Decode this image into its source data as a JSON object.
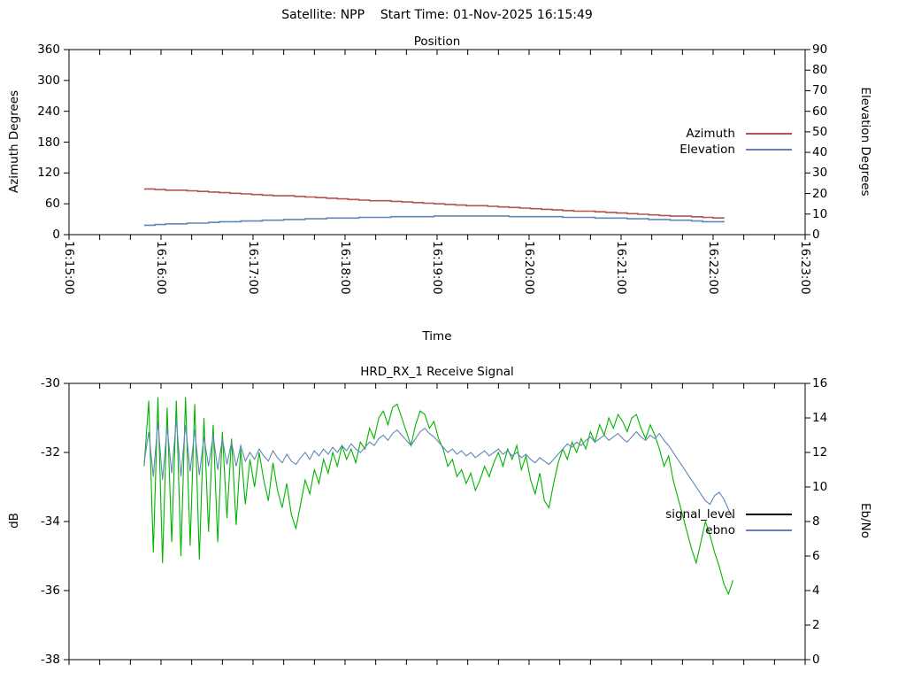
{
  "header": {
    "title": "Satellite: NPP    Start Time: 01-Nov-2025 16:15:49"
  },
  "colors": {
    "frame": "#000000",
    "background": "#ffffff",
    "azimuth_curve": "#b2544f",
    "elevation_curve": "#5f87b8",
    "signal_level_legend": "#000000",
    "signal_level_curve": "#00b400",
    "ebno_curve": "#5f87b8"
  },
  "chart_data": [
    {
      "type": "line",
      "title": "Position",
      "xlabel": "Time",
      "ylabel_left": "Azimuth Degrees",
      "ylabel_right": "Elevation Degrees",
      "x_tick_labels": [
        "16:15:00",
        "16:16:00",
        "16:17:00",
        "16:18:00",
        "16:19:00",
        "16:20:00",
        "16:21:00",
        "16:22:00",
        "16:23:00"
      ],
      "x_tick_seconds": [
        0,
        60,
        120,
        180,
        240,
        300,
        360,
        420,
        480
      ],
      "x_minor_tick_interval_s": 20,
      "x_range_s": [
        0,
        480
      ],
      "ylim_left": [
        0,
        360
      ],
      "yticks_left": [
        0,
        60,
        120,
        180,
        240,
        300,
        360
      ],
      "ylim_right": [
        0,
        90
      ],
      "yticks_right": [
        0,
        10,
        20,
        30,
        40,
        50,
        60,
        70,
        80,
        90
      ],
      "grid": false,
      "legend_position": "right-inside",
      "legend": [
        {
          "label": "Azimuth",
          "color_key": "azimuth_curve"
        },
        {
          "label": "Elevation",
          "color_key": "elevation_curve"
        }
      ],
      "series": [
        {
          "name": "Azimuth",
          "axis": "left",
          "color_key": "azimuth_curve",
          "t_start_s": 49,
          "t_step_s": 24,
          "quantize": 1.2,
          "values": [
            89,
            85.4,
            81.7,
            78,
            74.3,
            70.7,
            67,
            63.3,
            59.6,
            56,
            52.3,
            48.6,
            44.9,
            41.3,
            37.6,
            33.9,
            30.2
          ]
        },
        {
          "name": "Elevation",
          "axis": "right",
          "color_key": "elevation_curve",
          "t_start_s": 49,
          "t_step_s": 24,
          "quantize": 0.35,
          "values": [
            4.7,
            5.4,
            6.1,
            6.8,
            7.4,
            8.0,
            8.4,
            8.8,
            9.0,
            9.0,
            8.9,
            8.6,
            8.3,
            7.8,
            7.3,
            6.6,
            5.8
          ]
        }
      ]
    },
    {
      "type": "line",
      "title": "HRD_RX_1 Receive Signal",
      "xlabel": "",
      "ylabel_left": "dB",
      "ylabel_right": "Eb/No",
      "x_tick_labels": [],
      "x_tick_seconds": [
        0,
        60,
        120,
        180,
        240,
        300,
        360,
        420,
        480
      ],
      "x_minor_tick_interval_s": 20,
      "x_range_s": [
        0,
        480
      ],
      "ylim_left": [
        -38,
        -30
      ],
      "yticks_left": [
        -38,
        -36,
        -34,
        -32,
        -30
      ],
      "ylim_right": [
        0,
        16
      ],
      "yticks_right": [
        0,
        2,
        4,
        6,
        8,
        10,
        12,
        14,
        16
      ],
      "grid": false,
      "legend_position": "right-inside",
      "legend": [
        {
          "label": "signal_level",
          "color_key": "signal_level_legend"
        },
        {
          "label": "ebno",
          "color_key": "ebno_curve"
        }
      ],
      "series": [
        {
          "name": "signal_level",
          "axis": "left",
          "color_key": "signal_level_curve",
          "t_start_s": 49,
          "t_step_s": 3,
          "values": [
            -32.4,
            -30.5,
            -34.9,
            -30.4,
            -35.2,
            -30.7,
            -34.6,
            -30.5,
            -35.0,
            -30.4,
            -34.7,
            -30.6,
            -35.1,
            -31.0,
            -34.3,
            -31.2,
            -34.6,
            -31.4,
            -33.9,
            -31.6,
            -34.1,
            -31.9,
            -33.5,
            -32.2,
            -33.0,
            -32.0,
            -32.8,
            -33.4,
            -32.3,
            -33.1,
            -33.6,
            -32.9,
            -33.8,
            -34.2,
            -33.5,
            -32.8,
            -33.2,
            -32.5,
            -32.9,
            -32.2,
            -32.6,
            -32.0,
            -32.4,
            -31.8,
            -32.2,
            -31.9,
            -32.3,
            -31.7,
            -31.9,
            -31.3,
            -31.6,
            -31.0,
            -30.8,
            -31.2,
            -30.7,
            -30.6,
            -31.0,
            -31.4,
            -31.8,
            -31.2,
            -30.8,
            -30.9,
            -31.3,
            -31.1,
            -31.6,
            -31.9,
            -32.4,
            -32.2,
            -32.7,
            -32.5,
            -32.9,
            -32.6,
            -33.1,
            -32.8,
            -32.4,
            -32.7,
            -32.3,
            -32.0,
            -32.4,
            -31.9,
            -32.2,
            -31.8,
            -32.5,
            -32.1,
            -32.8,
            -33.2,
            -32.6,
            -33.4,
            -33.6,
            -32.9,
            -32.3,
            -31.9,
            -32.2,
            -31.7,
            -32.0,
            -31.6,
            -31.9,
            -31.4,
            -31.7,
            -31.2,
            -31.5,
            -31.0,
            -31.3,
            -30.9,
            -31.1,
            -31.4,
            -31.0,
            -30.9,
            -31.3,
            -31.6,
            -31.2,
            -31.5,
            -31.9,
            -32.4,
            -32.1,
            -32.8,
            -33.3,
            -33.8,
            -34.3,
            -34.8,
            -35.2,
            -34.6,
            -34.0,
            -34.4,
            -34.9,
            -35.3,
            -35.8,
            -36.1,
            -35.7
          ]
        },
        {
          "name": "ebno",
          "axis": "right",
          "color_key": "ebno_curve",
          "t_start_s": 49,
          "t_step_s": 3,
          "values": [
            11.4,
            13.2,
            10.6,
            13.8,
            10.4,
            13.5,
            10.8,
            13.9,
            10.6,
            13.6,
            10.9,
            13.3,
            10.7,
            12.9,
            11.2,
            13.0,
            11.0,
            12.8,
            11.3,
            12.6,
            11.2,
            12.4,
            11.5,
            12.0,
            11.6,
            12.2,
            11.8,
            11.5,
            12.1,
            11.7,
            11.4,
            11.9,
            11.5,
            11.3,
            11.7,
            12.0,
            11.6,
            12.1,
            11.8,
            12.2,
            11.9,
            12.3,
            12.0,
            12.4,
            12.1,
            12.5,
            12.2,
            12.0,
            12.3,
            12.6,
            12.4,
            12.8,
            13.0,
            12.7,
            13.1,
            13.3,
            13.0,
            12.7,
            12.4,
            12.8,
            13.2,
            13.4,
            13.1,
            12.9,
            12.6,
            12.3,
            12.0,
            12.2,
            11.9,
            12.1,
            11.8,
            12.0,
            11.7,
            11.9,
            12.1,
            11.8,
            12.0,
            12.2,
            11.9,
            12.1,
            11.8,
            12.0,
            11.7,
            11.9,
            11.6,
            11.4,
            11.7,
            11.5,
            11.3,
            11.6,
            11.9,
            12.2,
            12.5,
            12.3,
            12.6,
            12.4,
            12.7,
            12.9,
            12.6,
            12.8,
            13.0,
            12.7,
            12.9,
            13.1,
            12.8,
            12.6,
            12.9,
            13.2,
            12.9,
            12.7,
            13.0,
            12.8,
            13.1,
            12.7,
            12.4,
            12.0,
            11.6,
            11.2,
            10.8,
            10.4,
            10.0,
            9.6,
            9.2,
            9.0,
            9.5,
            9.7,
            9.3,
            8.7,
            8.2
          ]
        }
      ]
    }
  ]
}
